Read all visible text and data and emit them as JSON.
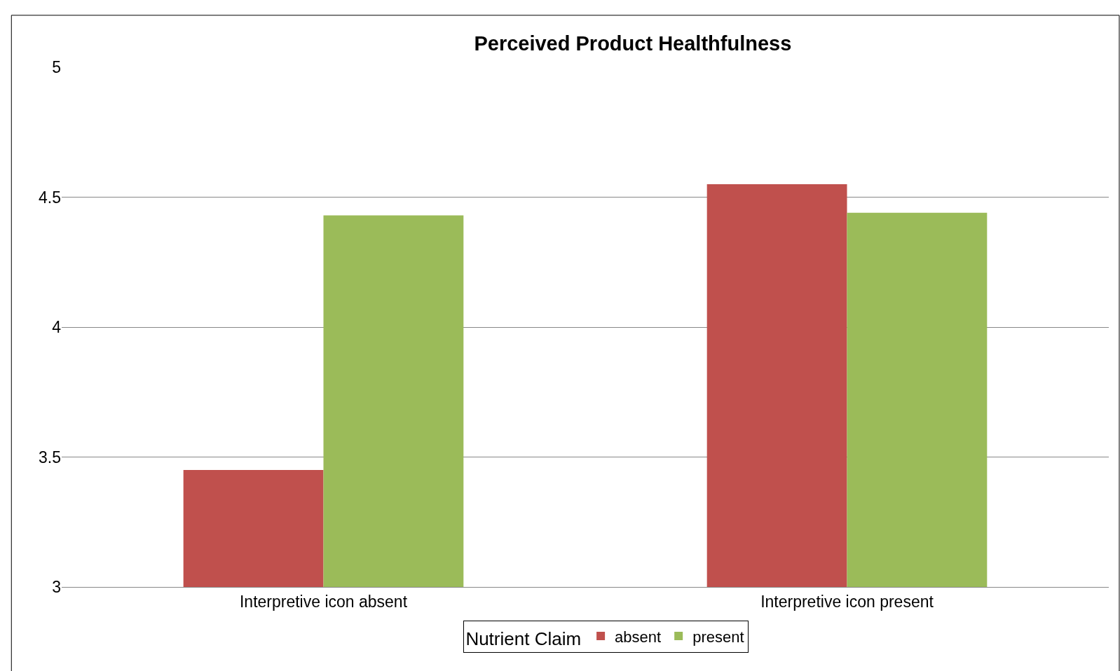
{
  "chart_data": {
    "type": "bar",
    "title": "Perceived Product Healthfulness",
    "categories": [
      "Interpretive icon absent",
      "Interpretive icon present"
    ],
    "legend_title": "Nutrient Claim",
    "series": [
      {
        "name": "absent",
        "color": "#c0504d",
        "values": [
          3.45,
          4.55
        ]
      },
      {
        "name": "present",
        "color": "#9bbb59",
        "values": [
          4.43,
          4.44
        ]
      }
    ],
    "ylim": [
      3,
      5
    ],
    "yticks": [
      3,
      3.5,
      4,
      4.5,
      5
    ],
    "grid": "y",
    "legend": "bottom"
  }
}
